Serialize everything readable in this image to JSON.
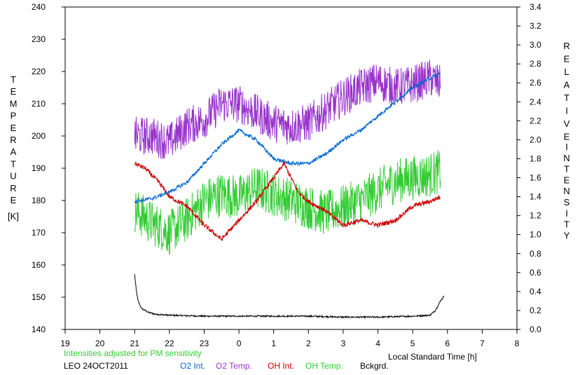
{
  "chart_data": {
    "type": "line",
    "xlabel": "Local Standard Time [h]",
    "ylabel_left_letters": [
      "T",
      "E",
      "M",
      "P",
      "E",
      "R",
      "A",
      "T",
      "U",
      "R",
      "E"
    ],
    "ylabel_left_unit": "[K]",
    "ylabel_right_letters_1": [
      "R",
      "E",
      "L",
      "A",
      "T",
      "I",
      "V",
      "E"
    ],
    "ylabel_right_letters_2": [
      "I",
      "N",
      "T",
      "E",
      "N",
      "S",
      "I",
      "T",
      "Y"
    ],
    "note": "Intensities adjusted for PM sensitivity",
    "station": "LEO 24OCT2011",
    "x_ticks": [
      "19",
      "20",
      "21",
      "22",
      "23",
      "0",
      "1",
      "2",
      "3",
      "4",
      "5",
      "6",
      "7",
      "8"
    ],
    "x_range": [
      19,
      32
    ],
    "y_left_range": [
      140,
      240
    ],
    "y_left_ticks": [
      "140",
      "150",
      "160",
      "170",
      "180",
      "190",
      "200",
      "210",
      "220",
      "230",
      "240"
    ],
    "y_right_range": [
      0.0,
      3.4
    ],
    "y_right_ticks": [
      "0.0",
      "0.2",
      "0.4",
      "0.6",
      "0.8",
      "1.0",
      "1.2",
      "1.4",
      "1.6",
      "1.8",
      "2.0",
      "2.2",
      "2.4",
      "2.6",
      "2.8",
      "3.0",
      "3.2",
      "3.4"
    ],
    "grid": false,
    "series": [
      {
        "name": "O2 Int.",
        "axis": "right",
        "color": "#0066cc",
        "noise": 0.02,
        "x": [
          21.0,
          21.5,
          22.0,
          22.5,
          23.0,
          23.5,
          24.0,
          24.5,
          25.0,
          25.5,
          26.0,
          26.5,
          27.0,
          27.5,
          28.0,
          28.5,
          29.0,
          29.5,
          29.8
        ],
        "y": [
          1.35,
          1.38,
          1.45,
          1.55,
          1.75,
          1.95,
          2.1,
          2.0,
          1.8,
          1.75,
          1.75,
          1.85,
          2.0,
          2.1,
          2.25,
          2.4,
          2.55,
          2.65,
          2.7
        ]
      },
      {
        "name": "O2 Temp.",
        "axis": "left",
        "color": "#9933cc",
        "noise": 6,
        "x": [
          21.0,
          21.5,
          22.0,
          22.5,
          23.0,
          23.5,
          24.0,
          24.5,
          25.0,
          25.5,
          26.0,
          26.5,
          27.0,
          27.5,
          28.0,
          28.5,
          29.0,
          29.5,
          29.8
        ],
        "y": [
          200,
          200,
          198,
          203,
          205,
          210,
          210,
          207,
          204,
          203,
          204,
          208,
          212,
          215,
          217,
          215,
          216,
          218,
          216
        ]
      },
      {
        "name": "OH Int.",
        "axis": "right",
        "color": "#cc0000",
        "noise": 0.025,
        "x": [
          21.0,
          21.3,
          21.7,
          22.0,
          22.5,
          23.0,
          23.5,
          24.0,
          24.5,
          25.0,
          25.3,
          25.7,
          26.0,
          26.5,
          27.0,
          27.5,
          28.0,
          28.5,
          29.0,
          29.5,
          29.8
        ],
        "y": [
          1.75,
          1.7,
          1.55,
          1.4,
          1.3,
          1.1,
          0.95,
          1.15,
          1.35,
          1.6,
          1.75,
          1.45,
          1.35,
          1.25,
          1.1,
          1.15,
          1.1,
          1.15,
          1.3,
          1.35,
          1.4
        ]
      },
      {
        "name": "OH Temp.",
        "axis": "left",
        "color": "#33cc33",
        "noise": 7,
        "x": [
          21.0,
          21.5,
          22.0,
          22.5,
          23.0,
          23.5,
          24.0,
          24.5,
          25.0,
          25.5,
          26.0,
          26.5,
          27.0,
          27.5,
          28.0,
          28.5,
          29.0,
          29.5,
          29.8
        ],
        "y": [
          177,
          173,
          170,
          174,
          180,
          182,
          181,
          184,
          182,
          180,
          178,
          176,
          178,
          180,
          183,
          186,
          187,
          188,
          189
        ]
      },
      {
        "name": "Bckgrd.",
        "axis": "right",
        "color": "#000000",
        "noise": 0.008,
        "x": [
          21.0,
          21.05,
          21.1,
          21.2,
          21.4,
          21.6,
          22.0,
          23.0,
          24.0,
          25.0,
          26.0,
          27.0,
          28.0,
          29.0,
          29.5,
          29.65,
          29.8,
          29.9
        ],
        "y": [
          0.58,
          0.4,
          0.3,
          0.22,
          0.18,
          0.16,
          0.15,
          0.14,
          0.14,
          0.14,
          0.14,
          0.13,
          0.13,
          0.14,
          0.15,
          0.2,
          0.3,
          0.35
        ]
      }
    ]
  }
}
